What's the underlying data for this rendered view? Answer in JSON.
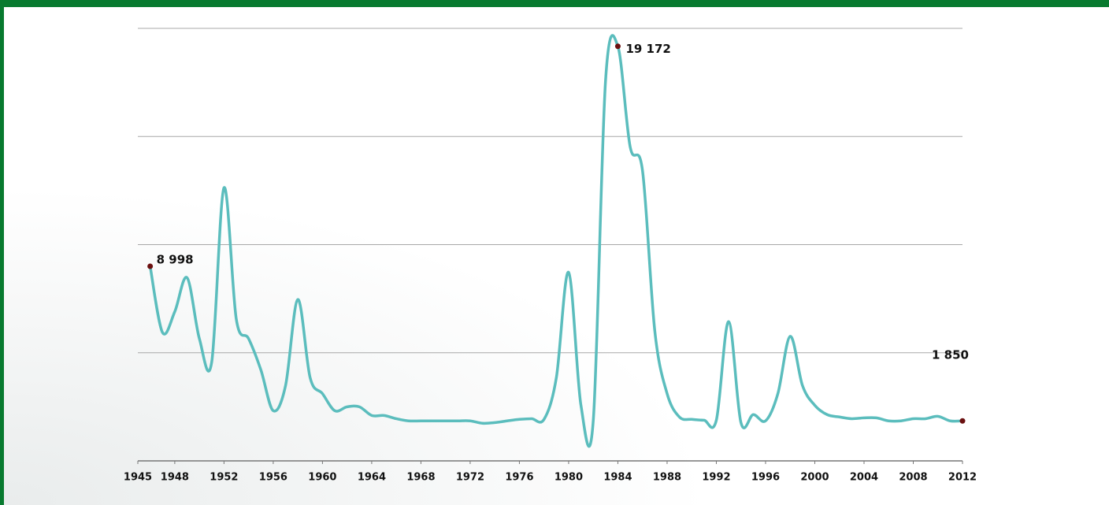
{
  "chart_data": {
    "type": "line",
    "x": [
      1946,
      1947,
      1948,
      1949,
      1950,
      1951,
      1952,
      1953,
      1954,
      1955,
      1956,
      1957,
      1958,
      1959,
      1960,
      1961,
      1962,
      1963,
      1964,
      1965,
      1966,
      1967,
      1968,
      1969,
      1970,
      1971,
      1972,
      1973,
      1974,
      1975,
      1976,
      1977,
      1978,
      1979,
      1980,
      1981,
      1982,
      1983,
      1984,
      1985,
      1986,
      1987,
      1988,
      1989,
      1990,
      1991,
      1992,
      1993,
      1994,
      1995,
      1996,
      1997,
      1998,
      1999,
      2000,
      2001,
      2002,
      2003,
      2004,
      2005,
      2006,
      2007,
      2008,
      2009,
      2010,
      2011,
      2012
    ],
    "values": [
      8998,
      5940,
      6900,
      8470,
      5650,
      4560,
      12630,
      6550,
      5650,
      4200,
      2320,
      3480,
      7460,
      3840,
      3110,
      2320,
      2500,
      2500,
      2100,
      2100,
      1950,
      1850,
      1850,
      1850,
      1850,
      1850,
      1850,
      1740,
      1770,
      1850,
      1920,
      1950,
      1920,
      3840,
      8720,
      2570,
      1850,
      17590,
      19172,
      14520,
      13430,
      6010,
      3110,
      2030,
      1920,
      1880,
      1880,
      6440,
      1770,
      2140,
      1850,
      3110,
      5760,
      3480,
      2570,
      2140,
      2030,
      1950,
      1990,
      1990,
      1850,
      1850,
      1950,
      1950,
      2060,
      1850,
      1850
    ],
    "color": "#5bbdbd",
    "xlim": [
      1945,
      2012
    ],
    "xticks": [
      1945,
      1948,
      1952,
      1956,
      1960,
      1964,
      1968,
      1972,
      1976,
      1980,
      1984,
      1988,
      1992,
      1996,
      2000,
      2004,
      2008,
      2012
    ],
    "ylim": [
      0,
      20000
    ],
    "yticks": [
      0,
      5000,
      10000,
      15000,
      20000
    ],
    "grid": true,
    "annotations": [
      {
        "label": "8 998",
        "x": 1946,
        "y": 8998
      },
      {
        "label": "19 172",
        "x": 1984,
        "y": 19172
      },
      {
        "label": "1 850",
        "x": 2012,
        "y": 1850
      }
    ]
  }
}
